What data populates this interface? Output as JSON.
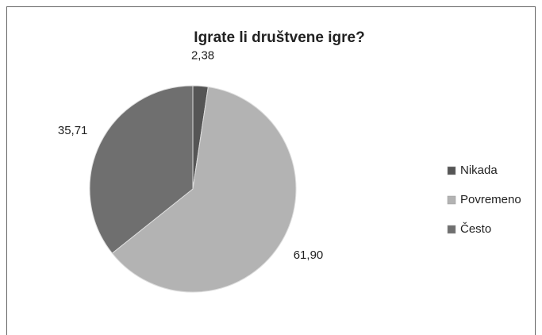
{
  "chart_data": {
    "type": "pie",
    "title": "Igrate li društvene igre?",
    "categories": [
      "Nikada",
      "Povremeno",
      "Često"
    ],
    "values": [
      2.38,
      61.9,
      35.71
    ],
    "value_labels": [
      "2,38",
      "61,90",
      "35,71"
    ],
    "colors": [
      "#555555",
      "#b3b3b3",
      "#6f6f6f"
    ],
    "legend": "right"
  }
}
